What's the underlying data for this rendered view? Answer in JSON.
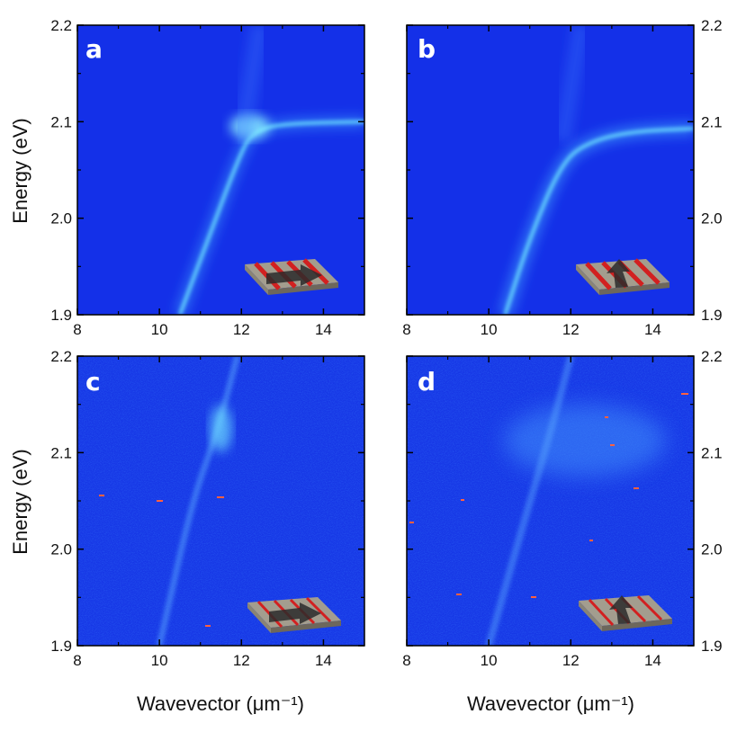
{
  "chart_data": [
    {
      "type": "heatmap",
      "panel": "a",
      "xlabel": "",
      "ylabel": "Energy (eV)",
      "xlim": [
        8,
        15
      ],
      "ylim": [
        1.9,
        2.2
      ],
      "xticks": [
        "8",
        "10",
        "12",
        "14"
      ],
      "yticks": [
        "1.9",
        "2.0",
        "2.1",
        "2.2"
      ],
      "features": [
        {
          "x": 10.5,
          "y": 1.9
        },
        {
          "x": 11.2,
          "y": 1.98
        },
        {
          "x": 12.0,
          "y": 2.07
        },
        {
          "x": 12.3,
          "y": 2.09
        },
        {
          "x": 13.0,
          "y": 2.098
        },
        {
          "x": 15.0,
          "y": 2.1
        }
      ],
      "inset_arrow": "right"
    },
    {
      "type": "heatmap",
      "panel": "b",
      "xlabel": "",
      "ylabel": "",
      "xlim": [
        8,
        15
      ],
      "ylim": [
        1.9,
        2.2
      ],
      "xticks": [
        "8",
        "10",
        "12",
        "14"
      ],
      "yticks": [
        "1.9",
        "2.0",
        "2.1",
        "2.2"
      ],
      "features": [
        {
          "x": 10.4,
          "y": 1.9
        },
        {
          "x": 11.0,
          "y": 1.98
        },
        {
          "x": 11.8,
          "y": 2.06
        },
        {
          "x": 12.5,
          "y": 2.08
        },
        {
          "x": 13.5,
          "y": 2.09
        },
        {
          "x": 15.0,
          "y": 2.093
        }
      ],
      "inset_arrow": "up"
    },
    {
      "type": "heatmap",
      "panel": "c",
      "xlabel": "Wavevector (μm⁻¹)",
      "ylabel": "Energy (eV)",
      "xlim": [
        8,
        15
      ],
      "ylim": [
        1.9,
        2.2
      ],
      "xticks": [
        "8",
        "10",
        "12",
        "14"
      ],
      "yticks": [
        "1.9",
        "2.0",
        "2.1",
        "2.2"
      ],
      "features": [
        {
          "x": 10.0,
          "y": 1.9
        },
        {
          "x": 10.8,
          "y": 2.05
        },
        {
          "x": 11.4,
          "y": 2.12
        },
        {
          "x": 11.9,
          "y": 2.2
        }
      ],
      "inset_arrow": "right"
    },
    {
      "type": "heatmap",
      "panel": "d",
      "xlabel": "Wavevector (μm⁻¹)",
      "ylabel": "",
      "xlim": [
        8,
        15
      ],
      "ylim": [
        1.9,
        2.2
      ],
      "xticks": [
        "8",
        "10",
        "12",
        "14"
      ],
      "yticks": [
        "1.9",
        "2.0",
        "2.1",
        "2.2"
      ],
      "features": [
        {
          "x": 10.0,
          "y": 1.9
        },
        {
          "x": 10.8,
          "y": 2.02
        },
        {
          "x": 11.5,
          "y": 2.12
        },
        {
          "x": 12.0,
          "y": 2.2
        }
      ],
      "inset_arrow": "up"
    }
  ],
  "colors": {
    "background_blue": "#1430e8",
    "signal_cyan": "#4fe0ff",
    "inset_stripe_red": "#d22020",
    "inset_base_gray": "#a39d8e"
  }
}
